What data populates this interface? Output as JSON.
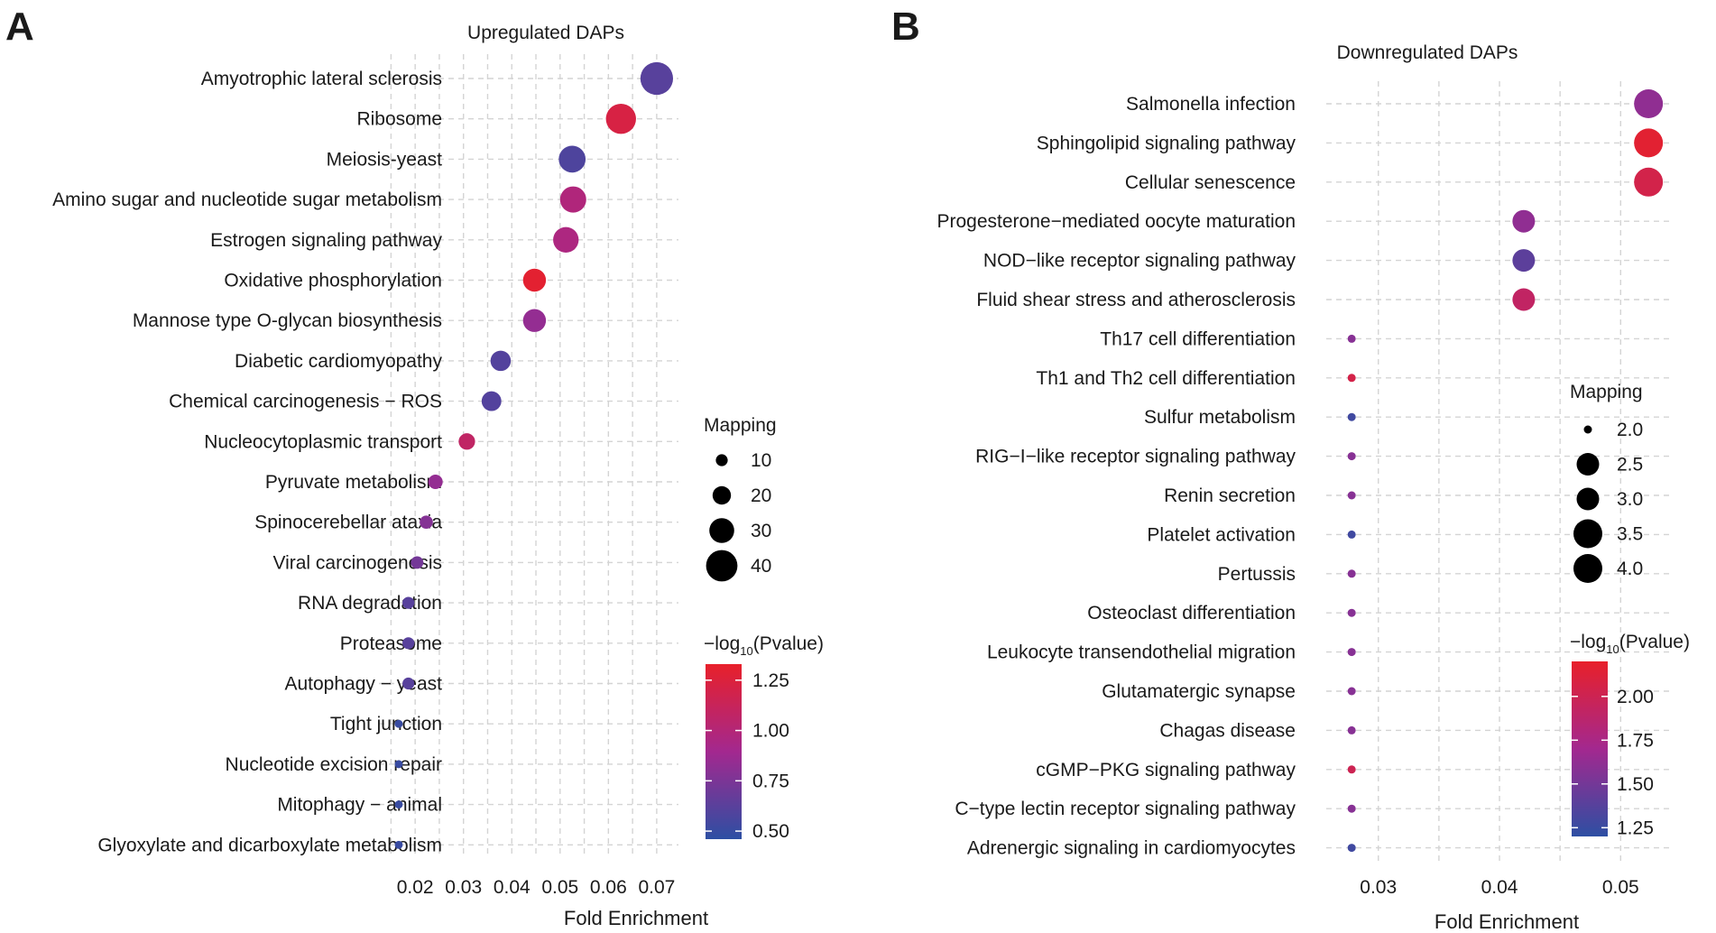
{
  "chart_data": [
    {
      "panel": "A",
      "type": "scatter",
      "title": "Upregulated DAPs",
      "xlabel": "Fold Enrichment",
      "ylabel": "",
      "xlim": [
        0.0125,
        0.0745
      ],
      "xticks": [
        0.02,
        0.03,
        0.04,
        0.05,
        0.06,
        0.07
      ],
      "xtick_labels": [
        "0.02",
        "0.03",
        "0.04",
        "0.05",
        "0.06",
        "0.07"
      ],
      "categories": [
        "Amyotrophic lateral sclerosis",
        "Ribosome",
        "Meiosis-yeast",
        "Amino sugar and nucleotide sugar metabolism",
        "Estrogen signaling pathway",
        "Oxidative phosphorylation",
        "Mannose type O-glycan biosynthesis",
        "Diabetic cardiomyopathy",
        "Chemical carcinogenesis − ROS",
        "Nucleocytoplasmic transport",
        "Pyruvate metabolism",
        "Spinocerebellar ataxia",
        "Viral carcinogenesis",
        "RNA degradation",
        "Proteasome",
        "Autophagy − yeast",
        "Tight junction",
        "Nucleotide excision repair",
        "Mitophagy − animal",
        "Glyoxylate and dicarboxylate metabolism"
      ],
      "x": [
        0.07,
        0.0626,
        0.0525,
        0.0527,
        0.0512,
        0.0447,
        0.0447,
        0.0377,
        0.0358,
        0.0307,
        0.0242,
        0.0223,
        0.0204,
        0.0186,
        0.0186,
        0.0186,
        0.0166,
        0.0166,
        0.0166,
        0.0166
      ],
      "size": [
        42,
        38,
        33,
        32,
        31,
        27,
        27,
        23,
        22,
        17,
        14,
        12,
        11,
        10,
        10,
        10,
        4,
        4,
        4,
        4
      ],
      "color_value": [
        0.62,
        1.22,
        0.58,
        0.98,
        0.96,
        1.3,
        0.84,
        0.6,
        0.6,
        1.08,
        0.84,
        0.78,
        0.72,
        0.62,
        0.62,
        0.62,
        0.5,
        0.5,
        0.5,
        0.5
      ],
      "size_legend": {
        "title": "Mapping",
        "values": [
          10,
          20,
          30,
          40
        ],
        "labels": [
          "10",
          "20",
          "30",
          "40"
        ]
      },
      "color_legend": {
        "title_prefix": "−log",
        "title_sub": "10",
        "title_suffix": "(Pvalue)",
        "range": [
          0.46,
          1.33
        ],
        "ticks": [
          1.25,
          1.0,
          0.75,
          0.5
        ],
        "tick_labels": [
          "1.25",
          "1.00",
          "0.75",
          "0.50"
        ]
      }
    },
    {
      "panel": "B",
      "type": "scatter",
      "title": "Downregulated DAPs",
      "xlabel": "Fold Enrichment",
      "ylabel": "",
      "xlim": [
        0.0257,
        0.054
      ],
      "xticks": [
        0.03,
        0.04,
        0.05
      ],
      "xtick_labels": [
        "0.03",
        "0.04",
        "0.05"
      ],
      "categories": [
        "Salmonella infection",
        "Sphingolipid signaling pathway",
        "Cellular senescence",
        "Progesterone−mediated oocyte maturation",
        "NOD−like receptor signaling pathway",
        "Fluid shear stress and atherosclerosis",
        "Th17 cell differentiation",
        "Th1 and Th2 cell differentiation",
        "Sulfur metabolism",
        "RIG−I−like receptor signaling pathway",
        "Renin secretion",
        "Platelet activation",
        "Pertussis",
        "Osteoclast differentiation",
        "Leukocyte transendothelial migration",
        "Glutamatergic synapse",
        "Chagas disease",
        "cGMP−PKG signaling pathway",
        "C−type lectin receptor signaling pathway",
        "Adrenergic signaling in cardiomyocytes"
      ],
      "x": [
        0.0523,
        0.0523,
        0.0523,
        0.042,
        0.042,
        0.042,
        0.0278,
        0.0278,
        0.0278,
        0.0278,
        0.0278,
        0.0278,
        0.0278,
        0.0278,
        0.0278,
        0.0278,
        0.0278,
        0.0278,
        0.0278,
        0.0278
      ],
      "size": [
        4,
        4,
        4,
        3,
        3,
        3,
        2,
        2,
        2,
        2,
        2,
        2,
        2,
        2,
        2,
        2,
        2,
        2,
        2,
        2
      ],
      "color_value": [
        1.62,
        2.16,
        2.04,
        1.62,
        1.4,
        1.92,
        1.58,
        2.05,
        1.28,
        1.58,
        1.58,
        1.28,
        1.58,
        1.58,
        1.58,
        1.58,
        1.58,
        2.0,
        1.58,
        1.28
      ],
      "size_legend": {
        "title": "Mapping",
        "values": [
          2.0,
          2.5,
          3.0,
          3.5,
          4.0
        ],
        "labels": [
          "2.0",
          "2.5",
          "3.0",
          "3.5",
          "4.0"
        ]
      },
      "color_legend": {
        "title_prefix": "−log",
        "title_sub": "10",
        "title_suffix": "(Pvalue)",
        "range": [
          1.2,
          2.2
        ],
        "ticks": [
          2.0,
          1.75,
          1.5,
          1.25
        ],
        "tick_labels": [
          "2.00",
          "1.75",
          "1.50",
          "1.25"
        ]
      }
    }
  ],
  "panel_labels": [
    "A",
    "B"
  ],
  "colors": {
    "low": "#2d4fa3",
    "mid": "#a3288f",
    "high": "#e8202a",
    "grid": "#d4d4d4",
    "text": "#1a1a1a"
  }
}
